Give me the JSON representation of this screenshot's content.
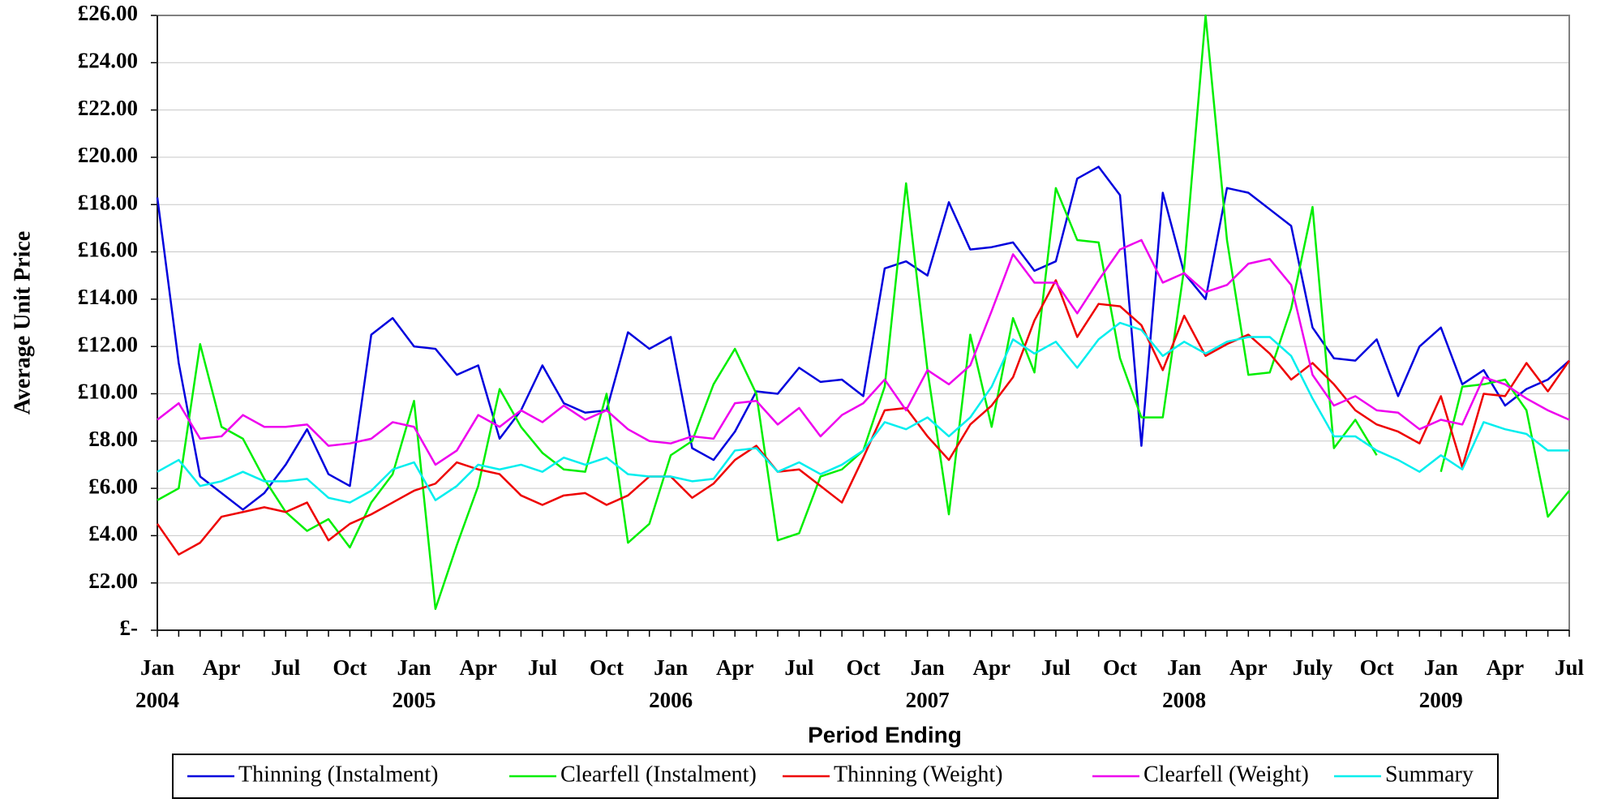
{
  "chart_data": {
    "type": "line",
    "y_label": "Average Unit Price",
    "x_label": "Period Ending",
    "categories": [
      "Jan",
      null,
      null,
      "Apr",
      null,
      null,
      "Jul",
      null,
      null,
      "Oct",
      null,
      null,
      "Jan",
      null,
      null,
      "Apr",
      null,
      null,
      "Jul",
      null,
      null,
      "Oct",
      null,
      null,
      "Jan",
      null,
      null,
      "Apr",
      null,
      null,
      "Jul",
      null,
      null,
      "Oct",
      null,
      null,
      "Jan",
      null,
      null,
      "Apr",
      null,
      null,
      "Jul",
      null,
      null,
      "Oct",
      null,
      null,
      "Jan",
      null,
      null,
      "Apr",
      null,
      null,
      "July",
      null,
      null,
      "Oct",
      null,
      null,
      "Jan",
      null,
      null,
      "Apr",
      null,
      null,
      "Jul"
    ],
    "years": [
      "2004",
      null,
      null,
      null,
      null,
      null,
      null,
      null,
      null,
      null,
      null,
      null,
      "2005",
      null,
      null,
      null,
      null,
      null,
      null,
      null,
      null,
      null,
      null,
      null,
      "2006",
      null,
      null,
      null,
      null,
      null,
      null,
      null,
      null,
      null,
      null,
      null,
      "2007",
      null,
      null,
      null,
      null,
      null,
      null,
      null,
      null,
      null,
      null,
      null,
      "2008",
      null,
      null,
      null,
      null,
      null,
      null,
      null,
      null,
      null,
      null,
      null,
      "2009",
      null,
      null,
      null,
      null,
      null,
      null
    ],
    "ylim": [
      0,
      26
    ],
    "yticks": [
      {
        "value": 0,
        "label": "£-"
      },
      {
        "value": 2,
        "label": "£2.00"
      },
      {
        "value": 4,
        "label": "£4.00"
      },
      {
        "value": 6,
        "label": "£6.00"
      },
      {
        "value": 8,
        "label": "£8.00"
      },
      {
        "value": 10,
        "label": "£10.00"
      },
      {
        "value": 12,
        "label": "£12.00"
      },
      {
        "value": 14,
        "label": "£14.00"
      },
      {
        "value": 16,
        "label": "£16.00"
      },
      {
        "value": 18,
        "label": "£18.00"
      },
      {
        "value": 20,
        "label": "£20.00"
      },
      {
        "value": 22,
        "label": "£22.00"
      },
      {
        "value": 24,
        "label": "£24.00"
      },
      {
        "value": 26,
        "label": "£26.00"
      }
    ],
    "grid": true,
    "legend": "bottom",
    "series": [
      {
        "name": "Thinning (Instalment)",
        "color": "#0000dd",
        "values": [
          18.3,
          11.3,
          6.5,
          5.8,
          5.1,
          5.8,
          7.0,
          8.5,
          6.6,
          6.1,
          12.5,
          13.2,
          12.0,
          11.9,
          10.8,
          11.2,
          8.1,
          9.3,
          11.2,
          9.6,
          9.2,
          9.3,
          12.6,
          11.9,
          12.4,
          7.7,
          7.2,
          8.4,
          10.1,
          10.0,
          11.1,
          10.5,
          10.6,
          9.9,
          15.3,
          15.6,
          15.0,
          18.1,
          16.1,
          16.2,
          16.4,
          15.2,
          15.6,
          19.1,
          19.6,
          18.4,
          7.8,
          18.5,
          15.1,
          14.0,
          18.7,
          18.5,
          17.8,
          17.1,
          12.8,
          11.5,
          11.4,
          12.3,
          9.9,
          12.0,
          12.8,
          10.4,
          11.0,
          9.5,
          10.2,
          10.6,
          11.4
        ]
      },
      {
        "name": "Clearfell (Instalment)",
        "color": "#00ee00",
        "values": [
          5.5,
          6.0,
          12.1,
          8.6,
          8.1,
          6.4,
          5.0,
          4.2,
          4.7,
          3.5,
          5.4,
          6.6,
          9.7,
          0.9,
          3.6,
          6.1,
          10.2,
          8.6,
          7.5,
          6.8,
          6.7,
          10.0,
          3.7,
          4.5,
          7.4,
          8.0,
          10.4,
          11.9,
          10.0,
          3.8,
          4.1,
          6.5,
          6.8,
          7.6,
          10.3,
          18.9,
          11.0,
          4.9,
          12.5,
          8.6,
          13.2,
          10.9,
          18.7,
          16.5,
          16.4,
          11.5,
          9.0,
          9.0,
          15.3,
          26.0,
          16.5,
          10.8,
          10.9,
          13.6,
          17.9,
          7.7,
          8.9,
          7.4,
          null,
          null,
          6.7,
          10.3,
          10.4,
          10.6,
          9.3,
          4.8,
          5.9
        ]
      },
      {
        "name": "Thinning (Weight)",
        "color": "#ee0000",
        "values": [
          4.5,
          3.2,
          3.7,
          4.8,
          5.0,
          5.2,
          5.0,
          5.4,
          3.8,
          4.5,
          4.9,
          5.4,
          5.9,
          6.2,
          7.1,
          6.8,
          6.6,
          5.7,
          5.3,
          5.7,
          5.8,
          5.3,
          5.7,
          6.5,
          6.5,
          5.6,
          6.2,
          7.2,
          7.8,
          6.7,
          6.8,
          6.1,
          5.4,
          7.3,
          9.3,
          9.4,
          8.2,
          7.2,
          8.7,
          9.5,
          10.7,
          13.1,
          14.8,
          12.4,
          13.8,
          13.7,
          12.9,
          11.0,
          13.3,
          11.6,
          12.1,
          12.5,
          11.7,
          10.6,
          11.3,
          10.4,
          9.3,
          8.7,
          8.4,
          7.9,
          9.9,
          6.9,
          10.0,
          9.9,
          11.3,
          10.1,
          11.4
        ]
      },
      {
        "name": "Clearfell (Weight)",
        "color": "#ee00ee",
        "values": [
          8.9,
          9.6,
          8.1,
          8.2,
          9.1,
          8.6,
          8.6,
          8.7,
          7.8,
          7.9,
          8.1,
          8.8,
          8.6,
          7.0,
          7.6,
          9.1,
          8.6,
          9.3,
          8.8,
          9.5,
          8.9,
          9.3,
          8.5,
          8.0,
          7.9,
          8.2,
          8.1,
          9.6,
          9.7,
          8.7,
          9.4,
          8.2,
          9.1,
          9.6,
          10.6,
          9.3,
          11.0,
          10.4,
          11.2,
          13.5,
          15.9,
          14.7,
          14.7,
          13.4,
          14.8,
          16.1,
          16.5,
          14.7,
          15.1,
          14.3,
          14.6,
          15.5,
          15.7,
          14.6,
          10.8,
          9.5,
          9.9,
          9.3,
          9.2,
          8.5,
          8.9,
          8.7,
          10.7,
          10.4,
          9.8,
          9.3,
          8.9
        ]
      },
      {
        "name": "Summary",
        "color": "#00eeee",
        "values": [
          6.7,
          7.2,
          6.1,
          6.3,
          6.7,
          6.3,
          6.3,
          6.4,
          5.6,
          5.4,
          5.9,
          6.8,
          7.1,
          5.5,
          6.1,
          7.0,
          6.8,
          7.0,
          6.7,
          7.3,
          7.0,
          7.3,
          6.6,
          6.5,
          6.5,
          6.3,
          6.4,
          7.6,
          7.7,
          6.7,
          7.1,
          6.6,
          7.0,
          7.6,
          8.8,
          8.5,
          9.0,
          8.2,
          9.0,
          10.3,
          12.3,
          11.7,
          12.2,
          11.1,
          12.3,
          13.0,
          12.7,
          11.6,
          12.2,
          11.7,
          12.2,
          12.4,
          12.4,
          11.6,
          9.8,
          8.2,
          8.2,
          7.6,
          7.2,
          6.7,
          7.4,
          6.8,
          8.8,
          8.5,
          8.3,
          7.6,
          7.6
        ]
      }
    ]
  }
}
